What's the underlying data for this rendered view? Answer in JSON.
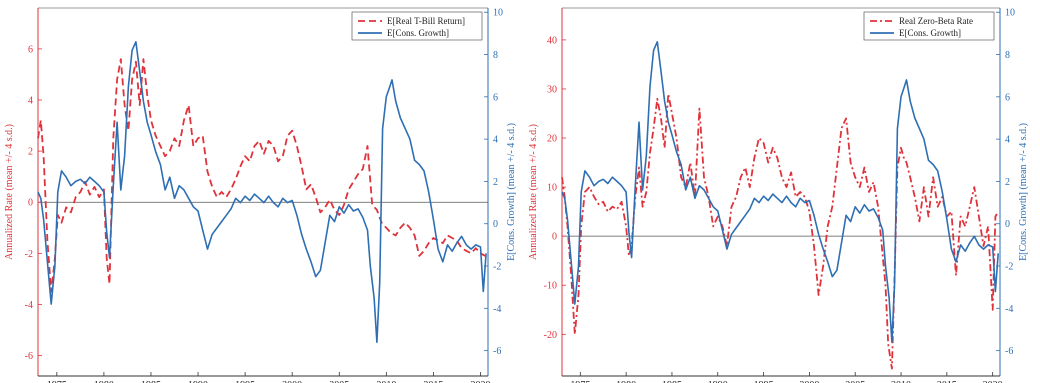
{
  "colors": {
    "red": "#e0323a",
    "blue": "#2e6fb3",
    "axis": "#333333",
    "zero": "#555555"
  },
  "chart_data": [
    {
      "type": "line",
      "x_ticks": [
        1975,
        1980,
        1985,
        1990,
        1995,
        2000,
        2005,
        2010,
        2015,
        2020
      ],
      "xlim": [
        1973.0,
        2020.8
      ],
      "left_axis": {
        "label": "Annualized Rate (mean +/- 4 s.d.)",
        "ylim": [
          -6.8,
          7.6
        ],
        "ticks": [
          -6,
          -4,
          -2,
          0,
          2,
          4,
          6
        ]
      },
      "right_axis": {
        "label": "E[Cons. Growth] (mean +/- 4 s.d.)",
        "ylim": [
          -7.2,
          10.2
        ],
        "ticks": [
          -6,
          -4,
          -2,
          0,
          2,
          4,
          6,
          8,
          10
        ]
      },
      "legend": {
        "position": "top-right"
      },
      "series": [
        {
          "name": "E[Real T-Bill Return]",
          "axis": "left",
          "style": "dashed",
          "color": "red",
          "x": [
            1973.0,
            1973.3,
            1973.6,
            1974.0,
            1974.4,
            1974.8,
            1975.1,
            1975.5,
            1976.0,
            1976.5,
            1977.0,
            1977.5,
            1978.0,
            1978.5,
            1979.0,
            1979.5,
            1980.0,
            1980.3,
            1980.6,
            1981.0,
            1981.4,
            1981.8,
            1982.2,
            1982.6,
            1983.0,
            1983.4,
            1983.8,
            1984.2,
            1984.6,
            1985.0,
            1985.5,
            1986.0,
            1986.5,
            1987.0,
            1987.5,
            1988.0,
            1988.5,
            1989.0,
            1989.5,
            1990.0,
            1990.5,
            1991.0,
            1991.5,
            1992.0,
            1992.5,
            1993.0,
            1993.5,
            1994.0,
            1994.5,
            1995.0,
            1995.5,
            1996.0,
            1996.5,
            1997.0,
            1997.5,
            1998.0,
            1998.5,
            1999.0,
            1999.5,
            2000.0,
            2000.5,
            2001.0,
            2001.5,
            2002.0,
            2002.5,
            2003.0,
            2003.5,
            2004.0,
            2004.5,
            2005.0,
            2005.5,
            2006.0,
            2006.5,
            2007.0,
            2007.5,
            2008.0,
            2008.5,
            2009.0,
            2009.5,
            2010.0,
            2010.5,
            2011.0,
            2011.5,
            2012.0,
            2012.5,
            2013.0,
            2013.5,
            2014.0,
            2014.5,
            2015.0,
            2015.5,
            2016.0,
            2016.5,
            2017.0,
            2017.5,
            2018.0,
            2018.5,
            2019.0,
            2019.5,
            2020.0,
            2020.5
          ],
          "values": [
            2.5,
            3.2,
            1.8,
            -1.5,
            -3.5,
            -2.2,
            -0.5,
            -0.8,
            -0.2,
            -0.4,
            0.2,
            0.4,
            0.8,
            0.3,
            0.6,
            0.2,
            0.5,
            -2.2,
            -3.2,
            2.5,
            4.8,
            5.6,
            3.8,
            2.8,
            4.8,
            5.5,
            3.8,
            5.6,
            4.2,
            3.2,
            2.6,
            2.2,
            1.8,
            2.0,
            2.5,
            2.2,
            3.2,
            3.8,
            2.2,
            2.5,
            2.6,
            1.2,
            0.6,
            0.2,
            0.4,
            0.2,
            0.5,
            0.9,
            1.4,
            1.8,
            1.6,
            2.2,
            2.4,
            1.9,
            2.4,
            2.2,
            1.6,
            1.8,
            2.6,
            2.8,
            2.2,
            1.4,
            0.5,
            0.7,
            0.2,
            -0.4,
            -0.2,
            0.1,
            -0.3,
            -0.5,
            -0.1,
            0.5,
            0.8,
            1.1,
            1.3,
            2.2,
            -0.1,
            -0.3,
            -0.8,
            -1.0,
            -1.2,
            -1.3,
            -1.0,
            -0.8,
            -1.0,
            -1.3,
            -2.1,
            -1.9,
            -1.6,
            -1.4,
            -1.5,
            -1.6,
            -1.3,
            -1.4,
            -1.5,
            -1.8,
            -1.9,
            -2.0,
            -1.8,
            -2.0,
            -2.1
          ]
        },
        {
          "name": "E[Cons. Growth]",
          "axis": "right",
          "style": "solid",
          "color": "blue",
          "x": [
            1973.0,
            1973.3,
            1973.6,
            1974.0,
            1974.4,
            1974.8,
            1975.1,
            1975.5,
            1976.0,
            1976.5,
            1977.0,
            1977.5,
            1978.0,
            1978.5,
            1979.0,
            1979.5,
            1980.0,
            1980.3,
            1980.6,
            1981.0,
            1981.4,
            1981.8,
            1982.2,
            1982.6,
            1983.0,
            1983.4,
            1983.8,
            1984.2,
            1984.6,
            1985.0,
            1985.5,
            1986.0,
            1986.5,
            1987.0,
            1987.5,
            1988.0,
            1988.5,
            1989.0,
            1989.5,
            1990.0,
            1990.5,
            1991.0,
            1991.5,
            1992.0,
            1992.5,
            1993.0,
            1993.5,
            1994.0,
            1994.5,
            1995.0,
            1995.5,
            1996.0,
            1996.5,
            1997.0,
            1997.5,
            1998.0,
            1998.5,
            1999.0,
            1999.5,
            2000.0,
            2000.5,
            2001.0,
            2001.5,
            2002.0,
            2002.5,
            2003.0,
            2003.5,
            2004.0,
            2004.5,
            2005.0,
            2005.5,
            2006.0,
            2006.5,
            2007.0,
            2007.5,
            2008.0,
            2008.3,
            2008.7,
            2009.0,
            2009.3,
            2009.6,
            2010.0,
            2010.3,
            2010.6,
            2011.0,
            2011.5,
            2012.0,
            2012.5,
            2013.0,
            2013.5,
            2014.0,
            2014.5,
            2015.0,
            2015.5,
            2016.0,
            2016.5,
            2017.0,
            2017.5,
            2018.0,
            2018.5,
            2019.0,
            2019.5,
            2020.0,
            2020.3,
            2020.6
          ],
          "values": [
            1.5,
            1.2,
            0.2,
            -1.8,
            -3.8,
            -2.0,
            1.5,
            2.5,
            2.2,
            1.8,
            2.0,
            2.1,
            1.9,
            2.2,
            2.0,
            1.8,
            1.5,
            -0.4,
            -1.6,
            1.8,
            4.8,
            1.6,
            3.2,
            6.5,
            8.2,
            8.6,
            7.2,
            5.8,
            4.8,
            4.2,
            3.4,
            2.8,
            1.6,
            2.2,
            1.2,
            1.8,
            1.6,
            1.2,
            0.8,
            0.6,
            -0.3,
            -1.2,
            -0.5,
            -0.2,
            0.1,
            0.4,
            0.7,
            1.2,
            1.0,
            1.3,
            1.1,
            1.4,
            1.2,
            1.0,
            1.3,
            1.0,
            0.8,
            1.2,
            1.0,
            1.1,
            0.4,
            -0.5,
            -1.2,
            -1.8,
            -2.5,
            -2.2,
            -0.9,
            0.4,
            0.1,
            0.8,
            0.5,
            0.9,
            0.6,
            0.7,
            0.3,
            -0.3,
            -2.0,
            -3.5,
            -5.6,
            -2.8,
            4.5,
            6.0,
            6.4,
            6.8,
            5.8,
            5.0,
            4.5,
            4.0,
            3.0,
            2.8,
            2.5,
            1.5,
            0.2,
            -1.2,
            -1.8,
            -1.0,
            -1.3,
            -0.9,
            -0.6,
            -1.0,
            -1.2,
            -1.0,
            -1.1,
            -3.2,
            -1.4
          ]
        }
      ]
    },
    {
      "type": "line",
      "x_ticks": [
        1975,
        1980,
        1985,
        1990,
        1995,
        2000,
        2005,
        2010,
        2015,
        2020
      ],
      "xlim": [
        1973.0,
        2020.8
      ],
      "left_axis": {
        "label": "Annualized Rate (mean +/- 4 s.d.)",
        "ylim": [
          -28.5,
          46.5
        ],
        "ticks": [
          -20,
          -10,
          0,
          10,
          20,
          30,
          40
        ]
      },
      "right_axis": {
        "label": "E[Cons. Growth] (mean +/- 4 s.d.)",
        "ylim": [
          -7.2,
          10.2
        ],
        "ticks": [
          -6,
          -4,
          -2,
          0,
          2,
          4,
          6,
          8,
          10
        ]
      },
      "legend": {
        "position": "top-right"
      },
      "series": [
        {
          "name": "Real Zero-Beta Rate",
          "axis": "left",
          "style": "dashdot",
          "color": "red",
          "x": [
            1973.0,
            1973.3,
            1973.6,
            1974.0,
            1974.4,
            1974.8,
            1975.1,
            1975.5,
            1976.0,
            1976.5,
            1977.0,
            1977.5,
            1978.0,
            1978.5,
            1979.0,
            1979.5,
            1980.0,
            1980.3,
            1980.6,
            1981.0,
            1981.4,
            1981.8,
            1982.2,
            1982.6,
            1983.0,
            1983.4,
            1983.8,
            1984.2,
            1984.6,
            1985.0,
            1985.5,
            1986.0,
            1986.5,
            1987.0,
            1987.5,
            1988.0,
            1988.5,
            1989.0,
            1989.5,
            1990.0,
            1990.5,
            1991.0,
            1991.5,
            1992.0,
            1992.5,
            1993.0,
            1993.5,
            1994.0,
            1994.5,
            1995.0,
            1995.5,
            1996.0,
            1996.5,
            1997.0,
            1997.5,
            1998.0,
            1998.5,
            1999.0,
            1999.5,
            2000.0,
            2000.5,
            2001.0,
            2001.5,
            2002.0,
            2002.5,
            2003.0,
            2003.5,
            2004.0,
            2004.5,
            2005.0,
            2005.5,
            2006.0,
            2006.5,
            2007.0,
            2007.5,
            2008.0,
            2008.3,
            2008.6,
            2009.0,
            2009.3,
            2009.6,
            2010.0,
            2010.3,
            2010.6,
            2011.0,
            2011.5,
            2012.0,
            2012.5,
            2013.0,
            2013.5,
            2014.0,
            2014.5,
            2015.0,
            2015.5,
            2016.0,
            2016.5,
            2017.0,
            2017.5,
            2018.0,
            2018.5,
            2019.0,
            2019.5,
            2020.0,
            2020.3,
            2020.6
          ],
          "values": [
            12.0,
            8.0,
            2.0,
            -8.0,
            -20.0,
            -12.0,
            2.0,
            9.0,
            10.0,
            8.0,
            6.5,
            7.0,
            5.0,
            6.0,
            5.5,
            7.0,
            2.0,
            -4.0,
            -2.0,
            8.0,
            14.0,
            6.0,
            9.0,
            17.0,
            22.0,
            28.0,
            24.0,
            18.0,
            29.0,
            25.0,
            20.0,
            12.0,
            10.0,
            15.0,
            8.0,
            26.0,
            12.0,
            8.0,
            2.0,
            4.0,
            2.0,
            -2.0,
            6.0,
            8.0,
            12.0,
            14.0,
            10.0,
            16.0,
            20.0,
            19.0,
            15.0,
            18.0,
            16.0,
            12.0,
            10.0,
            13.0,
            8.0,
            9.0,
            8.0,
            5.0,
            -2.0,
            -12.0,
            -6.0,
            2.0,
            6.0,
            14.0,
            22.0,
            24.0,
            15.0,
            12.0,
            10.0,
            14.0,
            9.0,
            11.0,
            6.0,
            -4.0,
            -10.0,
            -22.0,
            -27.0,
            -8.0,
            14.0,
            18.0,
            16.0,
            15.0,
            12.0,
            8.0,
            3.0,
            10.0,
            4.0,
            12.0,
            6.0,
            8.0,
            4.0,
            5.0,
            -8.0,
            4.0,
            2.0,
            6.0,
            10.0,
            4.0,
            -2.0,
            2.0,
            -15.0,
            4.0,
            5.0
          ]
        },
        {
          "name": "E[Cons. Growth]",
          "axis": "right",
          "style": "solid",
          "color": "blue",
          "x": [
            1973.0,
            1973.3,
            1973.6,
            1974.0,
            1974.4,
            1974.8,
            1975.1,
            1975.5,
            1976.0,
            1976.5,
            1977.0,
            1977.5,
            1978.0,
            1978.5,
            1979.0,
            1979.5,
            1980.0,
            1980.3,
            1980.6,
            1981.0,
            1981.4,
            1981.8,
            1982.2,
            1982.6,
            1983.0,
            1983.4,
            1983.8,
            1984.2,
            1984.6,
            1985.0,
            1985.5,
            1986.0,
            1986.5,
            1987.0,
            1987.5,
            1988.0,
            1988.5,
            1989.0,
            1989.5,
            1990.0,
            1990.5,
            1991.0,
            1991.5,
            1992.0,
            1992.5,
            1993.0,
            1993.5,
            1994.0,
            1994.5,
            1995.0,
            1995.5,
            1996.0,
            1996.5,
            1997.0,
            1997.5,
            1998.0,
            1998.5,
            1999.0,
            1999.5,
            2000.0,
            2000.5,
            2001.0,
            2001.5,
            2002.0,
            2002.5,
            2003.0,
            2003.5,
            2004.0,
            2004.5,
            2005.0,
            2005.5,
            2006.0,
            2006.5,
            2007.0,
            2007.5,
            2008.0,
            2008.3,
            2008.7,
            2009.0,
            2009.3,
            2009.6,
            2010.0,
            2010.3,
            2010.6,
            2011.0,
            2011.5,
            2012.0,
            2012.5,
            2013.0,
            2013.5,
            2014.0,
            2014.5,
            2015.0,
            2015.5,
            2016.0,
            2016.5,
            2017.0,
            2017.5,
            2018.0,
            2018.5,
            2019.0,
            2019.5,
            2020.0,
            2020.3,
            2020.6
          ],
          "values": [
            1.5,
            1.2,
            0.2,
            -1.8,
            -3.8,
            -2.0,
            1.5,
            2.5,
            2.2,
            1.8,
            2.0,
            2.1,
            1.9,
            2.2,
            2.0,
            1.8,
            1.5,
            -0.4,
            -1.6,
            1.8,
            4.8,
            1.6,
            3.2,
            6.5,
            8.2,
            8.6,
            7.2,
            5.8,
            4.8,
            4.2,
            3.4,
            2.8,
            1.6,
            2.2,
            1.2,
            1.8,
            1.6,
            1.2,
            0.8,
            0.6,
            -0.3,
            -1.2,
            -0.5,
            -0.2,
            0.1,
            0.4,
            0.7,
            1.2,
            1.0,
            1.3,
            1.1,
            1.4,
            1.2,
            1.0,
            1.3,
            1.0,
            0.8,
            1.2,
            1.0,
            1.1,
            0.4,
            -0.5,
            -1.2,
            -1.8,
            -2.5,
            -2.2,
            -0.9,
            0.4,
            0.1,
            0.8,
            0.5,
            0.9,
            0.6,
            0.7,
            0.3,
            -0.3,
            -2.0,
            -3.5,
            -5.6,
            -2.8,
            4.5,
            6.0,
            6.4,
            6.8,
            5.8,
            5.0,
            4.5,
            4.0,
            3.0,
            2.8,
            2.5,
            1.5,
            0.2,
            -1.2,
            -1.8,
            -1.0,
            -1.3,
            -0.9,
            -0.6,
            -1.0,
            -1.2,
            -1.0,
            -1.1,
            -3.2,
            -1.4
          ]
        }
      ]
    }
  ]
}
